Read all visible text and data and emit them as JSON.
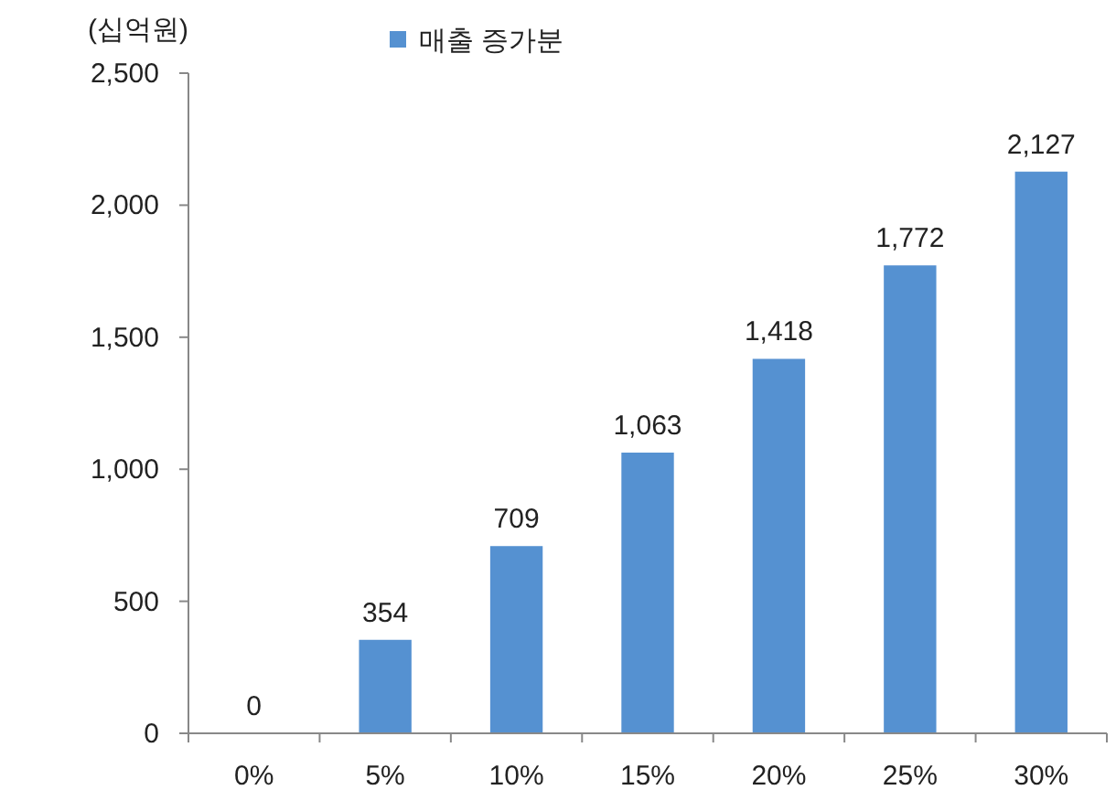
{
  "chart_data": {
    "type": "bar",
    "ylabel": "(십억원)",
    "categories": [
      "0%",
      "5%",
      "10%",
      "15%",
      "20%",
      "25%",
      "30%"
    ],
    "series": [
      {
        "name": "매출 증가분",
        "color": "#5591d1",
        "values": [
          0,
          354,
          709,
          1063,
          1418,
          1772,
          2127
        ],
        "value_labels": [
          "0",
          "354",
          "709",
          "1,063",
          "1,418",
          "1,772",
          "2,127"
        ]
      }
    ],
    "ylim": [
      0,
      2500
    ],
    "yticks": [
      0,
      500,
      {
        "value": 1000,
        "label": "1,000"
      },
      {
        "value": 1500,
        "label": "1,500"
      },
      {
        "value": 2000,
        "label": "2,000"
      },
      {
        "value": 2500,
        "label": "2,500"
      }
    ],
    "legend": "top",
    "grid": false
  }
}
